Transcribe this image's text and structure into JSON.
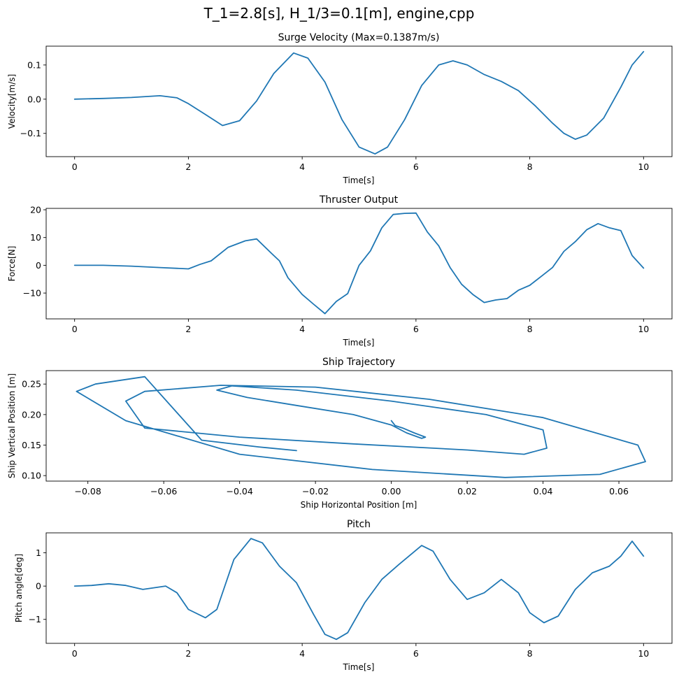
{
  "figure": {
    "suptitle": "T_1=2.8[s], H_1/3=0.1[m], engine,cpp",
    "series_color": "#1f77b4"
  },
  "chart_data": [
    {
      "id": "surge",
      "type": "line",
      "title": "Surge Velocity (Max=0.1387m/s)",
      "xlabel": "Time[s]",
      "ylabel": "Velocity[m/s]",
      "xlim": [
        -0.5,
        10.5
      ],
      "ylim": [
        -0.168,
        0.155
      ],
      "xticks": [
        0,
        2,
        4,
        6,
        8,
        10
      ],
      "xtick_labels": [
        "0",
        "2",
        "4",
        "6",
        "8",
        "10"
      ],
      "yticks": [
        -0.1,
        0.0,
        0.1
      ],
      "ytick_labels": [
        "−0.1",
        "0.0",
        "0.1"
      ],
      "series": [
        {
          "x": [
            0,
            0.5,
            1,
            1.5,
            1.8,
            2,
            2.3,
            2.6,
            2.9,
            3.2,
            3.5,
            3.85,
            4.1,
            4.4,
            4.7,
            5.0,
            5.28,
            5.5,
            5.8,
            6.1,
            6.4,
            6.65,
            6.9,
            7.2,
            7.5,
            7.8,
            8.1,
            8.4,
            8.6,
            8.8,
            9.0,
            9.3,
            9.6,
            9.8,
            10
          ],
          "y": [
            0,
            0.002,
            0.005,
            0.01,
            0.004,
            -0.013,
            -0.045,
            -0.077,
            -0.063,
            -0.005,
            0.075,
            0.135,
            0.12,
            0.05,
            -0.06,
            -0.14,
            -0.16,
            -0.14,
            -0.06,
            0.04,
            0.1,
            0.112,
            0.1,
            0.072,
            0.052,
            0.025,
            -0.02,
            -0.07,
            -0.1,
            -0.117,
            -0.105,
            -0.055,
            0.035,
            0.1,
            0.139
          ]
        }
      ]
    },
    {
      "id": "thruster",
      "type": "line",
      "title": "Thruster Output",
      "xlabel": "Time[s]",
      "ylabel": "Force[N]",
      "xlim": [
        -0.5,
        10.5
      ],
      "ylim": [
        -19.3,
        20.5
      ],
      "xticks": [
        0,
        2,
        4,
        6,
        8,
        10
      ],
      "xtick_labels": [
        "0",
        "2",
        "4",
        "6",
        "8",
        "10"
      ],
      "yticks": [
        -10,
        0,
        10,
        20
      ],
      "ytick_labels": [
        "−10",
        "0",
        "10",
        "20"
      ],
      "series": [
        {
          "x": [
            0,
            0.5,
            1,
            1.5,
            2,
            2.2,
            2.4,
            2.7,
            3.0,
            3.2,
            3.45,
            3.6,
            3.75,
            4.0,
            4.2,
            4.4,
            4.6,
            4.8,
            5.0,
            5.2,
            5.4,
            5.6,
            5.8,
            6.0,
            6.2,
            6.4,
            6.6,
            6.8,
            7.0,
            7.2,
            7.4,
            7.6,
            7.8,
            8.0,
            8.2,
            8.4,
            8.6,
            8.8,
            9.0,
            9.2,
            9.4,
            9.6,
            9.8,
            10
          ],
          "y": [
            0,
            0,
            -0.3,
            -0.8,
            -1.3,
            0.3,
            1.6,
            6.5,
            8.8,
            9.5,
            4.5,
            1.6,
            -4.5,
            -10.5,
            -14,
            -17.4,
            -13,
            -10.2,
            0,
            5.2,
            13.5,
            18.3,
            18.7,
            18.8,
            12,
            7,
            -0.8,
            -6.8,
            -10.5,
            -13.4,
            -12.5,
            -12,
            -9,
            -7.2,
            -4,
            -0.8,
            5,
            8.5,
            12.8,
            15,
            13.5,
            12.5,
            3.5,
            -1
          ]
        }
      ]
    },
    {
      "id": "trajectory",
      "type": "line",
      "title": "Ship Trajectory",
      "xlabel": "Ship Horizontal Position [m]",
      "ylabel": "Ship Vertical Position [m]",
      "xlim": [
        -0.091,
        0.074
      ],
      "ylim": [
        0.091,
        0.272
      ],
      "xticks": [
        -0.08,
        -0.06,
        -0.04,
        -0.02,
        0.0,
        0.02,
        0.04,
        0.06
      ],
      "xtick_labels": [
        "−0.08",
        "−0.06",
        "−0.04",
        "−0.02",
        "0.00",
        "0.02",
        "0.04",
        "0.06"
      ],
      "yticks": [
        0.1,
        0.15,
        0.2,
        0.25
      ],
      "ytick_labels": [
        "0.10",
        "0.15",
        "0.20",
        "0.25"
      ],
      "series": [
        {
          "x": [
            0,
            0.001,
            0.003,
            0.006,
            0.009,
            0.008,
            0.004,
            0,
            -0.01,
            -0.025,
            -0.038,
            -0.046,
            -0.042,
            -0.025,
            0,
            0.025,
            0.04,
            0.041,
            0.035,
            0.02,
            -0.01,
            -0.04,
            -0.065,
            -0.07,
            -0.065,
            -0.045,
            -0.02,
            0.01,
            0.04,
            0.065,
            0.067,
            0.055,
            0.03,
            -0.005,
            -0.04,
            -0.07,
            -0.083,
            -0.078,
            -0.065,
            -0.05,
            -0.035,
            -0.025
          ],
          "y": [
            0.19,
            0.182,
            0.178,
            0.17,
            0.163,
            0.161,
            0.17,
            0.183,
            0.2,
            0.215,
            0.228,
            0.24,
            0.247,
            0.24,
            0.222,
            0.2,
            0.175,
            0.145,
            0.135,
            0.142,
            0.152,
            0.163,
            0.178,
            0.222,
            0.238,
            0.248,
            0.245,
            0.225,
            0.195,
            0.15,
            0.123,
            0.102,
            0.097,
            0.11,
            0.135,
            0.19,
            0.238,
            0.25,
            0.262,
            0.158,
            0.147,
            0.141
          ]
        }
      ]
    },
    {
      "id": "pitch",
      "type": "line",
      "title": "Pitch",
      "xlabel": "Time[s]",
      "ylabel": "Pitch angle[deg]",
      "xlim": [
        -0.5,
        10.5
      ],
      "ylim": [
        -1.72,
        1.6
      ],
      "xticks": [
        0,
        2,
        4,
        6,
        8,
        10
      ],
      "xtick_labels": [
        "0",
        "2",
        "4",
        "6",
        "8",
        "10"
      ],
      "yticks": [
        -1,
        0,
        1
      ],
      "ytick_labels": [
        "−1",
        "0",
        "1"
      ],
      "series": [
        {
          "x": [
            0,
            0.3,
            0.6,
            0.9,
            1.2,
            1.4,
            1.6,
            1.8,
            2.0,
            2.3,
            2.5,
            2.8,
            3.1,
            3.3,
            3.6,
            3.9,
            4.2,
            4.4,
            4.6,
            4.8,
            5.1,
            5.4,
            5.7,
            6.1,
            6.3,
            6.6,
            6.9,
            7.2,
            7.5,
            7.8,
            8.0,
            8.25,
            8.5,
            8.8,
            9.1,
            9.4,
            9.6,
            9.8,
            10
          ],
          "y": [
            0,
            0.02,
            0.07,
            0.02,
            -0.1,
            -0.05,
            0,
            -0.2,
            -0.7,
            -0.95,
            -0.7,
            0.8,
            1.43,
            1.3,
            0.6,
            0.1,
            -0.85,
            -1.45,
            -1.6,
            -1.4,
            -0.5,
            0.2,
            0.65,
            1.22,
            1.05,
            0.2,
            -0.4,
            -0.2,
            0.2,
            -0.2,
            -0.8,
            -1.1,
            -0.9,
            -0.1,
            0.4,
            0.6,
            0.9,
            1.35,
            0.9
          ]
        }
      ]
    }
  ]
}
